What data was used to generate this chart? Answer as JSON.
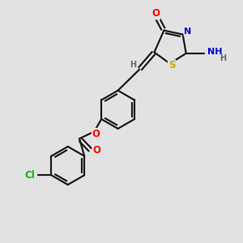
{
  "background_color": "#e2e2e2",
  "bond_color": "#1a1a1a",
  "atom_colors": {
    "O": "#ff0000",
    "N": "#0000cc",
    "S": "#ccaa00",
    "Cl": "#00bb00",
    "H": "#666666",
    "C": "#1a1a1a"
  },
  "lw": 1.6,
  "ring_r": 0.78
}
